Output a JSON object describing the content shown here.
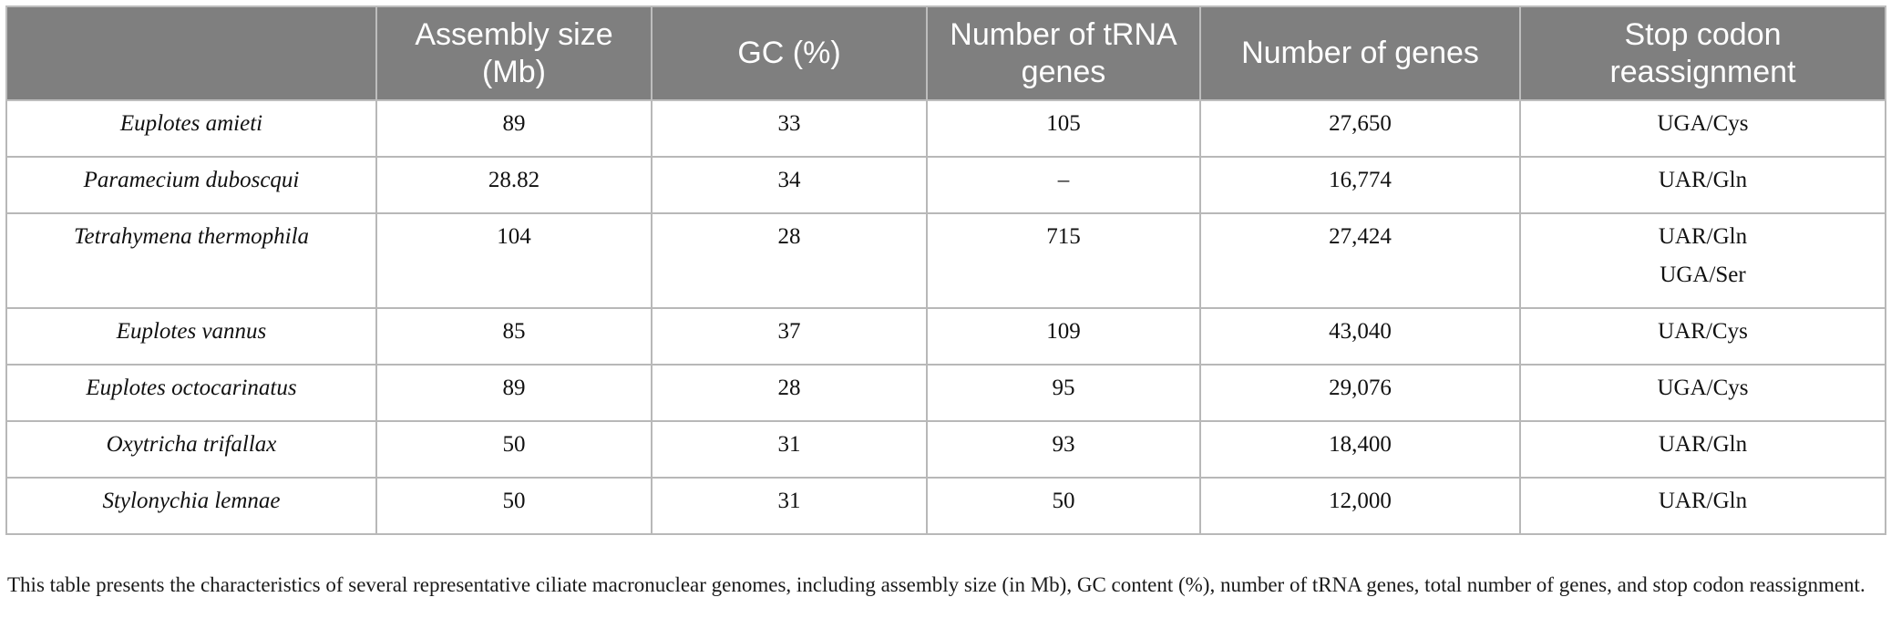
{
  "table": {
    "headers": [
      "",
      "Assembly size (Mb)",
      "GC (%)",
      "Number of tRNA genes",
      "Number of genes",
      "Stop codon reassignment"
    ],
    "rows": [
      {
        "species": "Euplotes amieti",
        "assembly_size": "89",
        "gc": "33",
        "trna": "105",
        "genes": "27,650",
        "stop_codon": [
          "UGA/Cys"
        ]
      },
      {
        "species": "Paramecium duboscqui",
        "assembly_size": "28.82",
        "gc": "34",
        "trna": "–",
        "genes": "16,774",
        "stop_codon": [
          "UAR/Gln"
        ]
      },
      {
        "species": "Tetrahymena thermophila",
        "assembly_size": "104",
        "gc": "28",
        "trna": "715",
        "genes": "27,424",
        "stop_codon": [
          "UAR/Gln",
          "UGA/Ser"
        ]
      },
      {
        "species": "Euplotes vannus",
        "assembly_size": "85",
        "gc": "37",
        "trna": "109",
        "genes": "43,040",
        "stop_codon": [
          "UAR/Cys"
        ]
      },
      {
        "species": "Euplotes octocarinatus",
        "assembly_size": "89",
        "gc": "28",
        "trna": "95",
        "genes": "29,076",
        "stop_codon": [
          "UGA/Cys"
        ]
      },
      {
        "species": "Oxytricha trifallax",
        "assembly_size": "50",
        "gc": "31",
        "trna": "93",
        "genes": "18,400",
        "stop_codon": [
          "UAR/Gln"
        ]
      },
      {
        "species": "Stylonychia lemnae",
        "assembly_size": "50",
        "gc": "31",
        "trna": "50",
        "genes": "12,000",
        "stop_codon": [
          "UAR/Gln"
        ]
      }
    ]
  },
  "caption": "This table presents the characteristics of several representative ciliate macronuclear genomes, including assembly size (in Mb), GC content (%), number of tRNA genes, total number of genes, and stop codon reassignment."
}
